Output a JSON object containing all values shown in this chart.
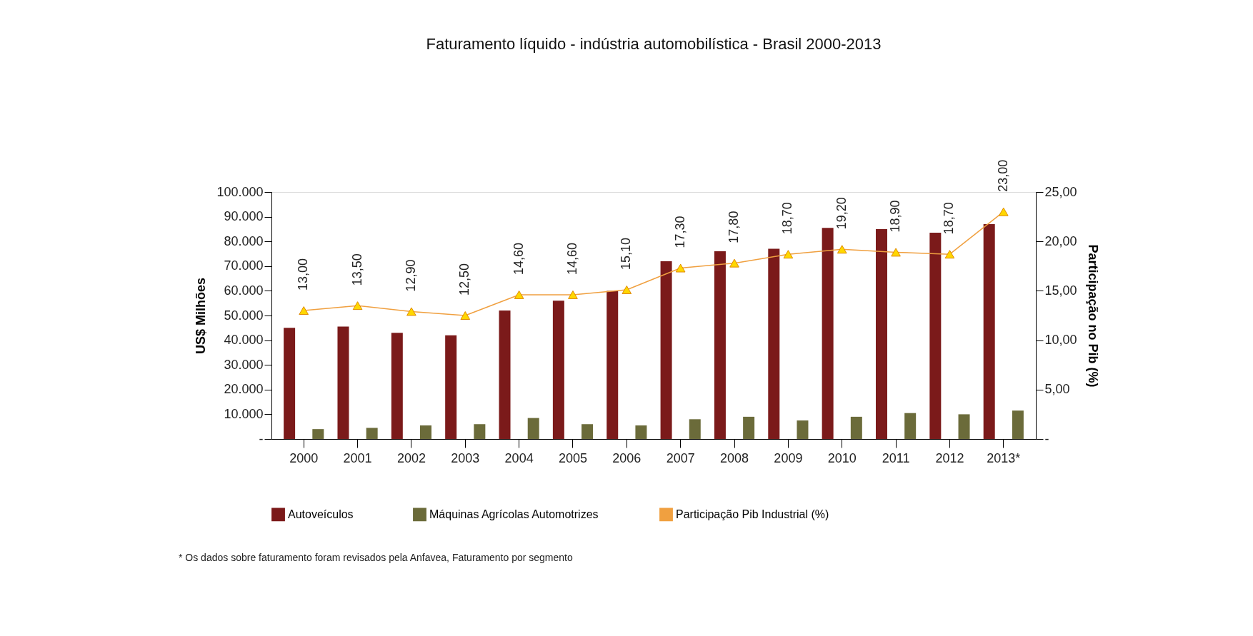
{
  "chart_data": {
    "type": "bar",
    "title": "Faturamento líquido - indústria automobilística - Brasil 2000-2013",
    "categories": [
      "2000",
      "2001",
      "2002",
      "2003",
      "2004",
      "2005",
      "2006",
      "2007",
      "2008",
      "2009",
      "2010",
      "2011",
      "2012",
      "2013*"
    ],
    "series": [
      {
        "name": "Autoveículos",
        "color": "#7b1a1a",
        "values": [
          45000,
          45500,
          43000,
          42000,
          52000,
          56000,
          60000,
          72000,
          76000,
          77000,
          85500,
          85000,
          83500,
          87000
        ]
      },
      {
        "name": "Máquinas Agrícolas Automotrizes",
        "color": "#6b6b3a",
        "values": [
          4000,
          4500,
          5500,
          6000,
          8500,
          6000,
          5500,
          8000,
          9000,
          7500,
          9000,
          10500,
          10000,
          11500
        ]
      },
      {
        "name": "Participação Pib Industrial (%)",
        "type": "line",
        "axis": "y2",
        "color": "#f0a040",
        "marker": "triangle",
        "values": [
          13.0,
          13.5,
          12.9,
          12.5,
          14.6,
          14.6,
          15.1,
          17.3,
          17.8,
          18.7,
          19.2,
          18.9,
          18.7,
          23.0
        ],
        "value_labels": [
          "13,00",
          "13,50",
          "12,90",
          "12,50",
          "14,60",
          "14,60",
          "15,10",
          "17,30",
          "17,80",
          "18,70",
          "19,20",
          "18,90",
          "18,70",
          "23,00"
        ]
      }
    ],
    "ylabel": "US$ Milhões",
    "y2label": "Participação no Pib (%)",
    "ylim": [
      0,
      100000
    ],
    "yticks": [
      {
        "value": 0,
        "label": "-"
      },
      {
        "value": 10000,
        "label": "10.000"
      },
      {
        "value": 20000,
        "label": "20.000"
      },
      {
        "value": 30000,
        "label": "30.000"
      },
      {
        "value": 40000,
        "label": "40.000"
      },
      {
        "value": 50000,
        "label": "50.000"
      },
      {
        "value": 60000,
        "label": "60.000"
      },
      {
        "value": 70000,
        "label": "70.000"
      },
      {
        "value": 80000,
        "label": "80.000"
      },
      {
        "value": 90000,
        "label": "90.000"
      },
      {
        "value": 100000,
        "label": "100.000"
      }
    ],
    "y2lim": [
      0,
      25
    ],
    "y2ticks": [
      {
        "value": 0,
        "label": "-"
      },
      {
        "value": 5,
        "label": "5,00"
      },
      {
        "value": 10,
        "label": "10,00"
      },
      {
        "value": 15,
        "label": "15,00"
      },
      {
        "value": 20,
        "label": "20,00"
      },
      {
        "value": 25,
        "label": "25,00"
      }
    ],
    "legend": "bottom",
    "grid": false,
    "annotations": [
      "* Os dados sobre faturamento foram revisados pela Anfavea, Faturamento por segmento"
    ]
  }
}
